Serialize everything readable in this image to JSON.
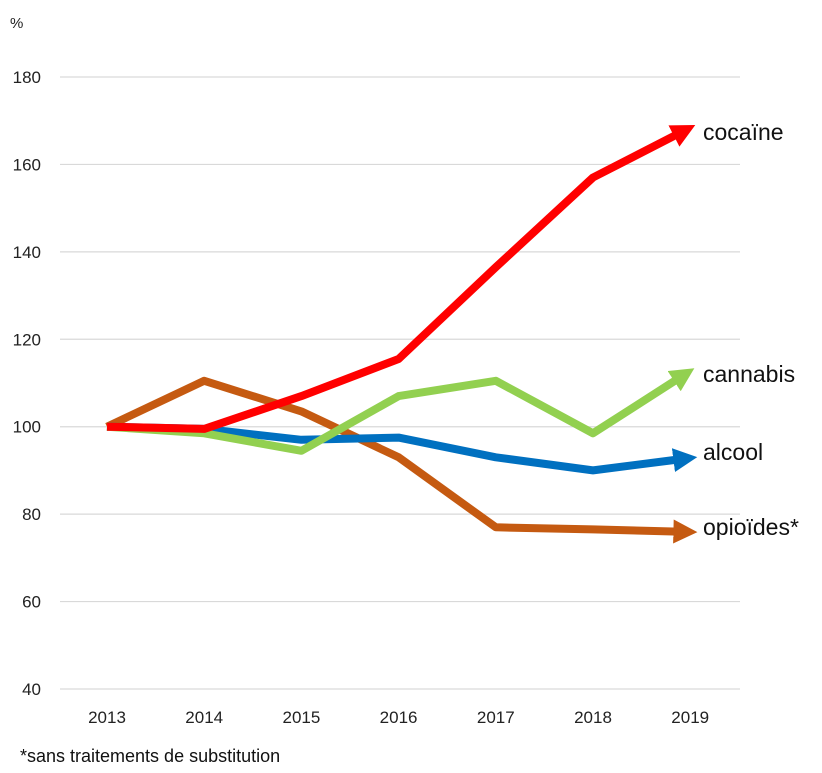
{
  "chart_data": {
    "type": "line",
    "ylabel": "%",
    "ylim": [
      40,
      180
    ],
    "yticks": [
      40,
      60,
      80,
      100,
      120,
      140,
      160,
      180
    ],
    "x": [
      "2013",
      "2014",
      "2015",
      "2016",
      "2017",
      "2018",
      "2019"
    ],
    "grid": "horizontal",
    "series": [
      {
        "name": "cocaïne",
        "color": "#ff0000",
        "values": [
          100,
          99.5,
          107,
          115.5,
          136.5,
          157,
          167
        ]
      },
      {
        "name": "cannabis",
        "color": "#92d050",
        "values": [
          100,
          98.5,
          94.5,
          107,
          110.5,
          98.5,
          111
        ]
      },
      {
        "name": "alcool",
        "color": "#0070c0",
        "values": [
          100,
          99.5,
          97,
          97.5,
          93,
          90,
          92.5
        ]
      },
      {
        "name": "opioïdes*",
        "color": "#c55a11",
        "values": [
          100,
          110.5,
          103.5,
          93,
          77,
          76.5,
          76
        ]
      }
    ],
    "footnote": "*sans traitements de substitution"
  }
}
